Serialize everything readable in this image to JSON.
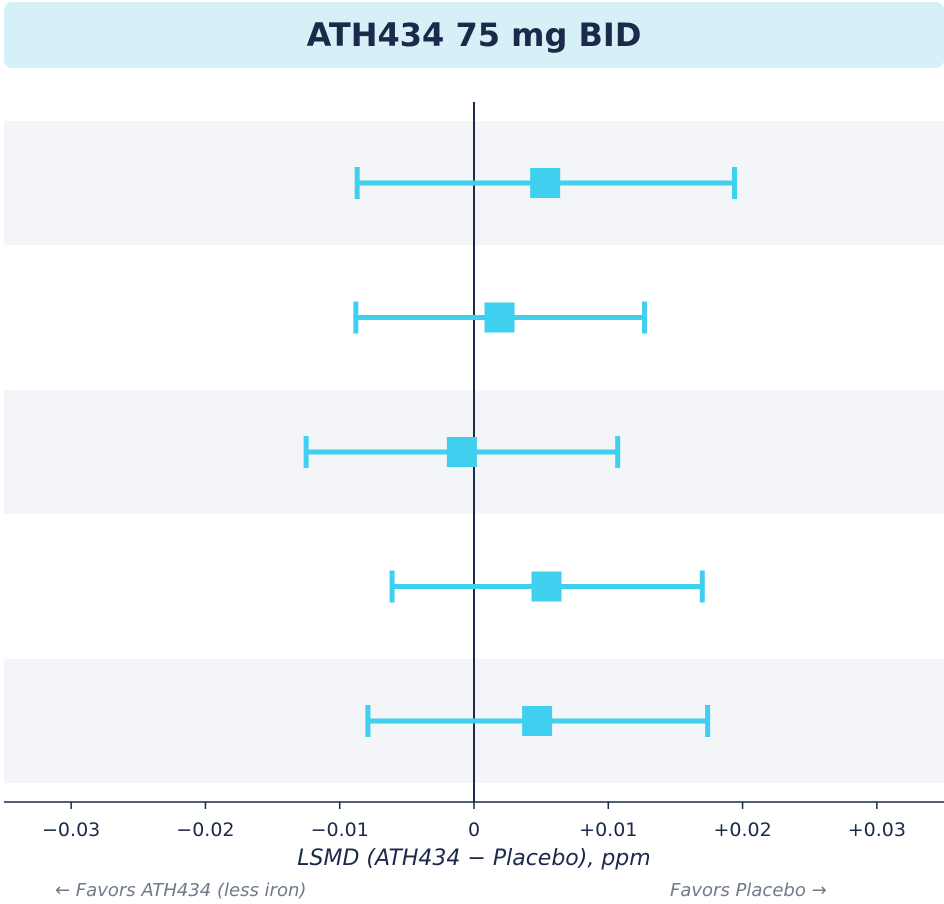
{
  "chart_data": {
    "type": "forest",
    "title": "ATH434 75 mg BID",
    "xlabel": "LSMD (ATH434 − Placebo), ppm",
    "xlim": [
      -0.035,
      0.035
    ],
    "xticks": [
      -0.03,
      -0.02,
      -0.01,
      0,
      0.01,
      0.02,
      0.03
    ],
    "xtick_labels": [
      "−0.03",
      "−0.02",
      "−0.01",
      "0",
      "+0.01",
      "+0.02",
      "+0.03"
    ],
    "reference_line": 0,
    "points": [
      {
        "estimate": 0.0053,
        "lower": -0.0087,
        "upper": 0.0194
      },
      {
        "estimate": 0.0019,
        "lower": -0.0088,
        "upper": 0.0127
      },
      {
        "estimate": -0.0009,
        "lower": -0.0125,
        "upper": 0.0107
      },
      {
        "estimate": 0.0054,
        "lower": -0.0061,
        "upper": 0.017
      },
      {
        "estimate": 0.0047,
        "lower": -0.0079,
        "upper": 0.0174
      }
    ],
    "favors_left": "← Favors ATH434 (less iron)",
    "favors_right": "Favors Placebo →",
    "colors": {
      "marker": "#3fd0ef",
      "band": "#f3f5f9",
      "axis": "#1b2a4a",
      "title_bg": "#d5f0f7",
      "muted_text": "#707a88"
    }
  }
}
